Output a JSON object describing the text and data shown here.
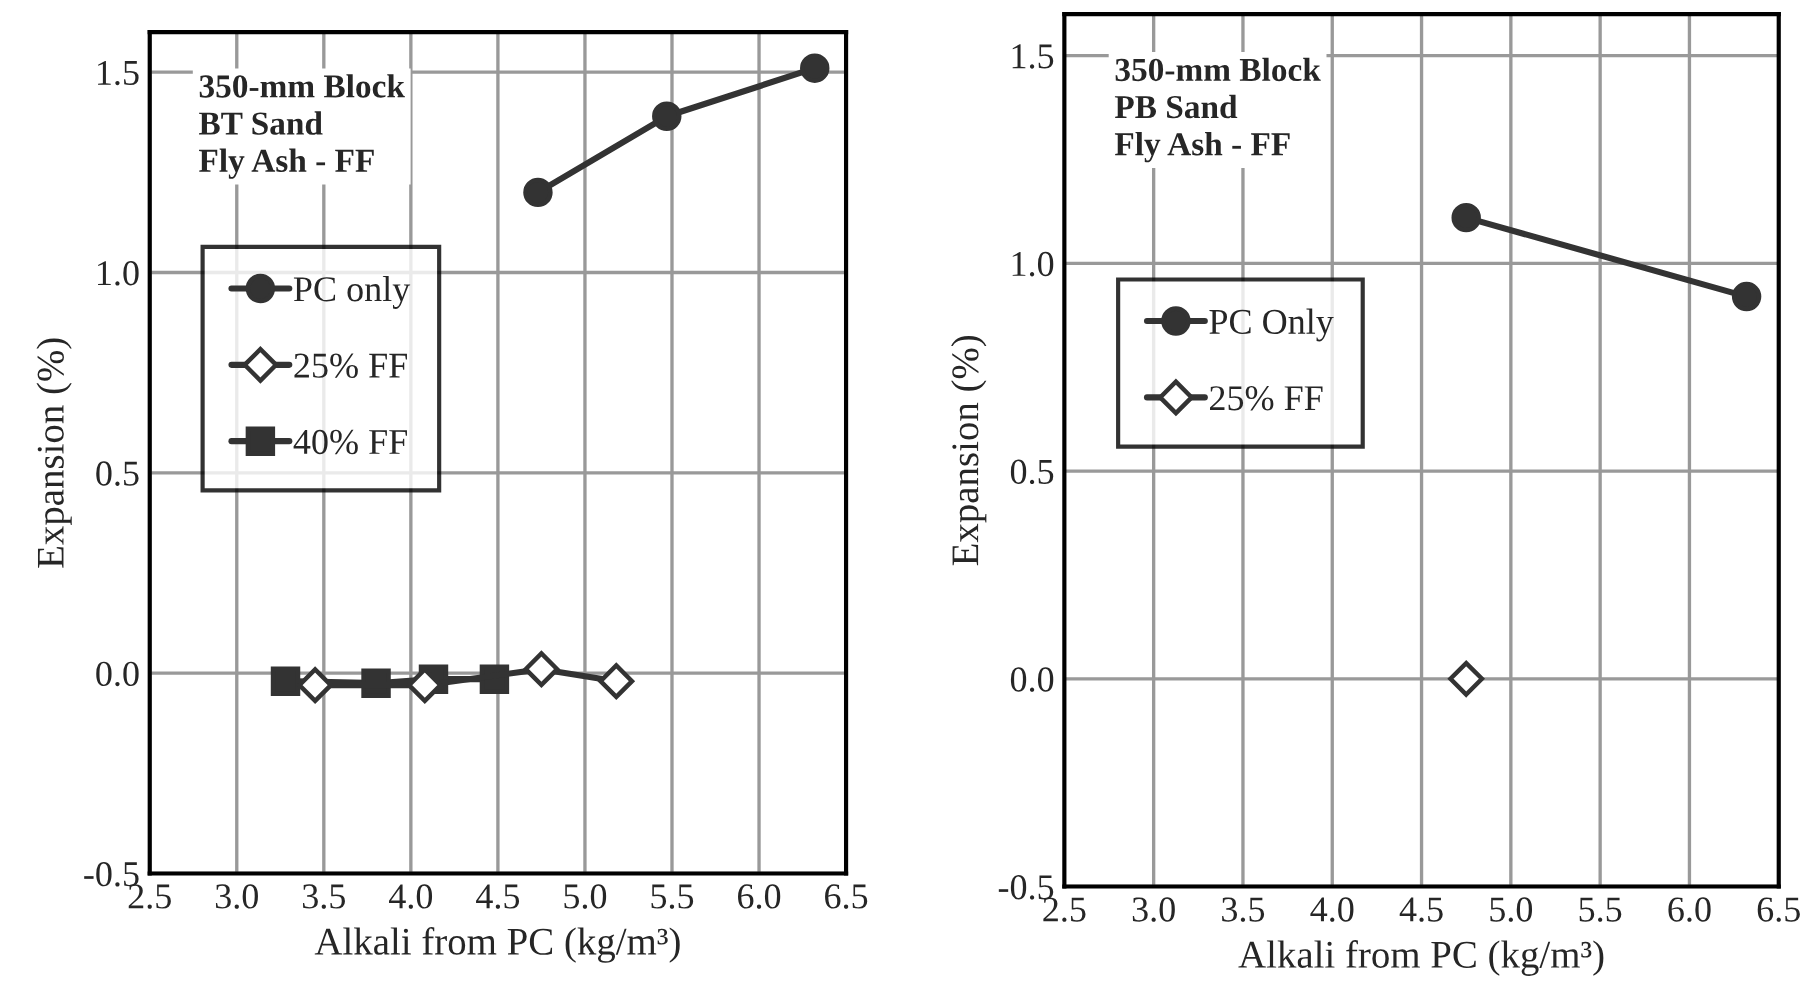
{
  "chart_data": [
    {
      "type": "line",
      "xlabel": "Alkali from PC (kg/m³)",
      "ylabel": "Expansion (%)",
      "annotations": [
        "350-mm Block\nBT Sand\nFly Ash - FF"
      ],
      "series": [
        {
          "name": "PC only",
          "color": "#333333",
          "marker": "circle",
          "x": [
            4.73,
            5.47,
            6.32
          ],
          "values": [
            1.2,
            1.39,
            1.51
          ]
        },
        {
          "name": "25% FF",
          "color": "#333333",
          "marker": "diamond",
          "x": [
            3.45,
            4.08,
            4.75,
            5.18
          ],
          "values": [
            -0.03,
            -0.03,
            0.01,
            -0.02
          ]
        },
        {
          "name": "40% FF",
          "color": "#333333",
          "marker": "square",
          "x": [
            3.28,
            3.8,
            4.13,
            4.48
          ],
          "values": [
            -0.02,
            -0.025,
            -0.015,
            -0.015
          ]
        }
      ],
      "xlim": [
        2.5,
        6.5
      ],
      "xticks": [
        {
          "value": 2.5,
          "label": "2.5"
        },
        {
          "value": 3.0,
          "label": "3.0"
        },
        {
          "value": 3.5,
          "label": "3.5"
        },
        {
          "value": 4.0,
          "label": "4.0"
        },
        {
          "value": 4.5,
          "label": "4.5"
        },
        {
          "value": 5.0,
          "label": "5.0"
        },
        {
          "value": 5.5,
          "label": "5.5"
        },
        {
          "value": 6.0,
          "label": "6.0"
        },
        {
          "value": 6.5,
          "label": "6.5"
        }
      ],
      "ylim": [
        -0.5,
        1.6
      ],
      "yticks": [
        {
          "value": -0.5,
          "label": "-0.5"
        },
        {
          "value": 0.0,
          "label": "0.0"
        },
        {
          "value": 0.5,
          "label": "0.5"
        },
        {
          "value": 1.0,
          "label": "1.0"
        },
        {
          "value": 1.5,
          "label": "1.5"
        }
      ],
      "grid": true,
      "legend": "left",
      "line_style": "solid"
    },
    {
      "type": "line",
      "xlabel": "Alkali from PC (kg/m³)",
      "ylabel": "Expansion (%)",
      "annotations": [
        "350-mm Block\nPB Sand\nFly Ash - FF"
      ],
      "series": [
        {
          "name": "PC Only",
          "color": "#333333",
          "marker": "circle",
          "x": [
            4.75,
            6.32
          ],
          "values": [
            1.11,
            0.92
          ]
        },
        {
          "name": "25% FF",
          "color": "#333333",
          "marker": "diamond",
          "x": [
            4.75
          ],
          "values": [
            0.0
          ]
        }
      ],
      "xlim": [
        2.5,
        6.5
      ],
      "xticks": [
        {
          "value": 2.5,
          "label": "2.5"
        },
        {
          "value": 3.0,
          "label": "3.0"
        },
        {
          "value": 3.5,
          "label": "3.5"
        },
        {
          "value": 4.0,
          "label": "4.0"
        },
        {
          "value": 4.5,
          "label": "4.5"
        },
        {
          "value": 5.0,
          "label": "5.0"
        },
        {
          "value": 5.5,
          "label": "5.5"
        },
        {
          "value": 6.0,
          "label": "6.0"
        },
        {
          "value": 6.5,
          "label": "6.5"
        }
      ],
      "ylim": [
        -0.5,
        1.6
      ],
      "yticks": [
        {
          "value": -0.5,
          "label": "-0.5"
        },
        {
          "value": 0.0,
          "label": "0.0"
        },
        {
          "value": 0.5,
          "label": "0.5"
        },
        {
          "value": 1.0,
          "label": "1.0"
        },
        {
          "value": 1.5,
          "label": "1.5"
        }
      ],
      "grid": true,
      "legend": "left",
      "line_style": "solid"
    }
  ]
}
